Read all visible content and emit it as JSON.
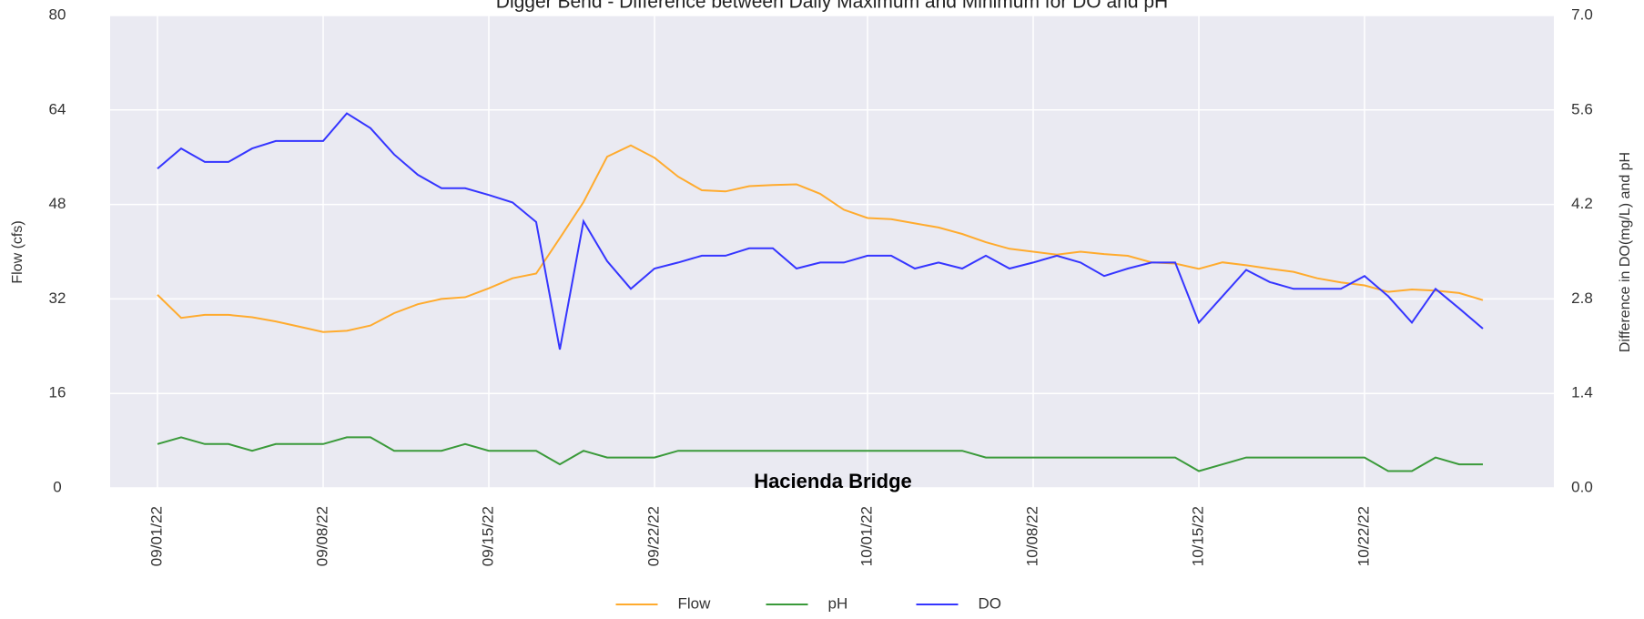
{
  "chart_data": {
    "type": "line",
    "title": "Digger Bend - Difference between Daily Maximum and Minimum for DO and pH",
    "annotation": "Hacienda Bridge",
    "ylabel": "Flow (cfs)",
    "y2label": "Difference in DO(mg/L) and pH",
    "x": [
      "2022-09-01",
      "2022-09-02",
      "2022-09-03",
      "2022-09-04",
      "2022-09-05",
      "2022-09-06",
      "2022-09-07",
      "2022-09-08",
      "2022-09-09",
      "2022-09-10",
      "2022-09-11",
      "2022-09-12",
      "2022-09-13",
      "2022-09-14",
      "2022-09-15",
      "2022-09-16",
      "2022-09-17",
      "2022-09-18",
      "2022-09-19",
      "2022-09-20",
      "2022-09-21",
      "2022-09-22",
      "2022-09-23",
      "2022-09-24",
      "2022-09-25",
      "2022-09-26",
      "2022-09-27",
      "2022-09-28",
      "2022-09-29",
      "2022-09-30",
      "2022-10-01",
      "2022-10-02",
      "2022-10-03",
      "2022-10-04",
      "2022-10-05",
      "2022-10-06",
      "2022-10-07",
      "2022-10-08",
      "2022-10-09",
      "2022-10-10",
      "2022-10-11",
      "2022-10-12",
      "2022-10-13",
      "2022-10-14",
      "2022-10-15",
      "2022-10-16",
      "2022-10-17",
      "2022-10-18",
      "2022-10-19",
      "2022-10-20",
      "2022-10-21",
      "2022-10-22",
      "2022-10-23",
      "2022-10-24",
      "2022-10-25",
      "2022-10-26",
      "2022-10-27"
    ],
    "xlim": [
      "2022-08-30",
      "2022-10-30"
    ],
    "xticks": [
      {
        "value": "2022-09-01",
        "label": "09/01/22"
      },
      {
        "value": "2022-09-08",
        "label": "09/08/22"
      },
      {
        "value": "2022-09-15",
        "label": "09/15/22"
      },
      {
        "value": "2022-09-22",
        "label": "09/22/22"
      },
      {
        "value": "2022-10-01",
        "label": "10/01/22"
      },
      {
        "value": "2022-10-08",
        "label": "10/08/22"
      },
      {
        "value": "2022-10-15",
        "label": "10/15/22"
      },
      {
        "value": "2022-10-22",
        "label": "10/22/22"
      }
    ],
    "ylim": [
      0,
      80
    ],
    "yticks": [
      0,
      16,
      32,
      48,
      64,
      80
    ],
    "y2lim": [
      0,
      7
    ],
    "y2ticks": [
      {
        "value": 0,
        "label": "0.0"
      },
      1.4,
      2.8,
      4.2,
      5.6,
      {
        "value": 7,
        "label": "7.0"
      }
    ],
    "grid": true,
    "legend": "bottom",
    "series": [
      {
        "name": "Flow",
        "color": "#ffab2e",
        "axis": "y",
        "values": [
          32.7,
          28.8,
          29.3,
          29.3,
          28.9,
          28.2,
          27.3,
          26.4,
          26.6,
          27.5,
          29.6,
          31.1,
          32,
          32.3,
          33.8,
          35.5,
          36.3,
          42.3,
          48.4,
          56.1,
          58,
          55.9,
          52.7,
          50.4,
          50.2,
          51.1,
          51.3,
          51.4,
          49.8,
          47.1,
          45.7,
          45.5,
          44.8,
          44.1,
          43,
          41.6,
          40.5,
          40,
          39.5,
          40,
          39.6,
          39.3,
          38.2,
          38,
          37.1,
          38.2,
          37.7,
          37.1,
          36.6,
          35.5,
          34.8,
          34.3,
          33.2,
          33.6,
          33.4,
          33,
          31.8
        ]
      },
      {
        "name": "pH",
        "color": "#3a9a3a",
        "axis": "y2",
        "values": [
          0.65,
          0.75,
          0.65,
          0.65,
          0.55,
          0.65,
          0.65,
          0.65,
          0.75,
          0.75,
          0.55,
          0.55,
          0.55,
          0.65,
          0.55,
          0.55,
          0.55,
          0.35,
          0.55,
          0.45,
          0.45,
          0.45,
          0.55,
          0.55,
          0.55,
          0.55,
          0.55,
          0.55,
          0.55,
          0.55,
          0.55,
          0.55,
          0.55,
          0.55,
          0.55,
          0.45,
          0.45,
          0.45,
          0.45,
          0.45,
          0.45,
          0.45,
          0.45,
          0.45,
          0.25,
          0.35,
          0.45,
          0.45,
          0.45,
          0.45,
          0.45,
          0.45,
          0.25,
          0.25,
          0.45,
          0.35,
          0.35
        ]
      },
      {
        "name": "DO",
        "color": "#3535ff",
        "axis": "y2",
        "values": [
          4.73,
          5.03,
          4.83,
          4.83,
          5.03,
          5.14,
          5.14,
          5.14,
          5.55,
          5.33,
          4.94,
          4.64,
          4.44,
          4.44,
          4.34,
          4.23,
          3.94,
          2.05,
          3.95,
          3.36,
          2.95,
          3.25,
          3.34,
          3.44,
          3.44,
          3.55,
          3.55,
          3.25,
          3.34,
          3.34,
          3.44,
          3.44,
          3.25,
          3.34,
          3.25,
          3.44,
          3.25,
          3.34,
          3.44,
          3.34,
          3.14,
          3.25,
          3.34,
          3.34,
          2.45,
          2.84,
          3.23,
          3.05,
          2.95,
          2.95,
          2.95,
          3.14,
          2.84,
          2.45,
          2.95,
          2.66,
          2.36
        ]
      }
    ]
  }
}
